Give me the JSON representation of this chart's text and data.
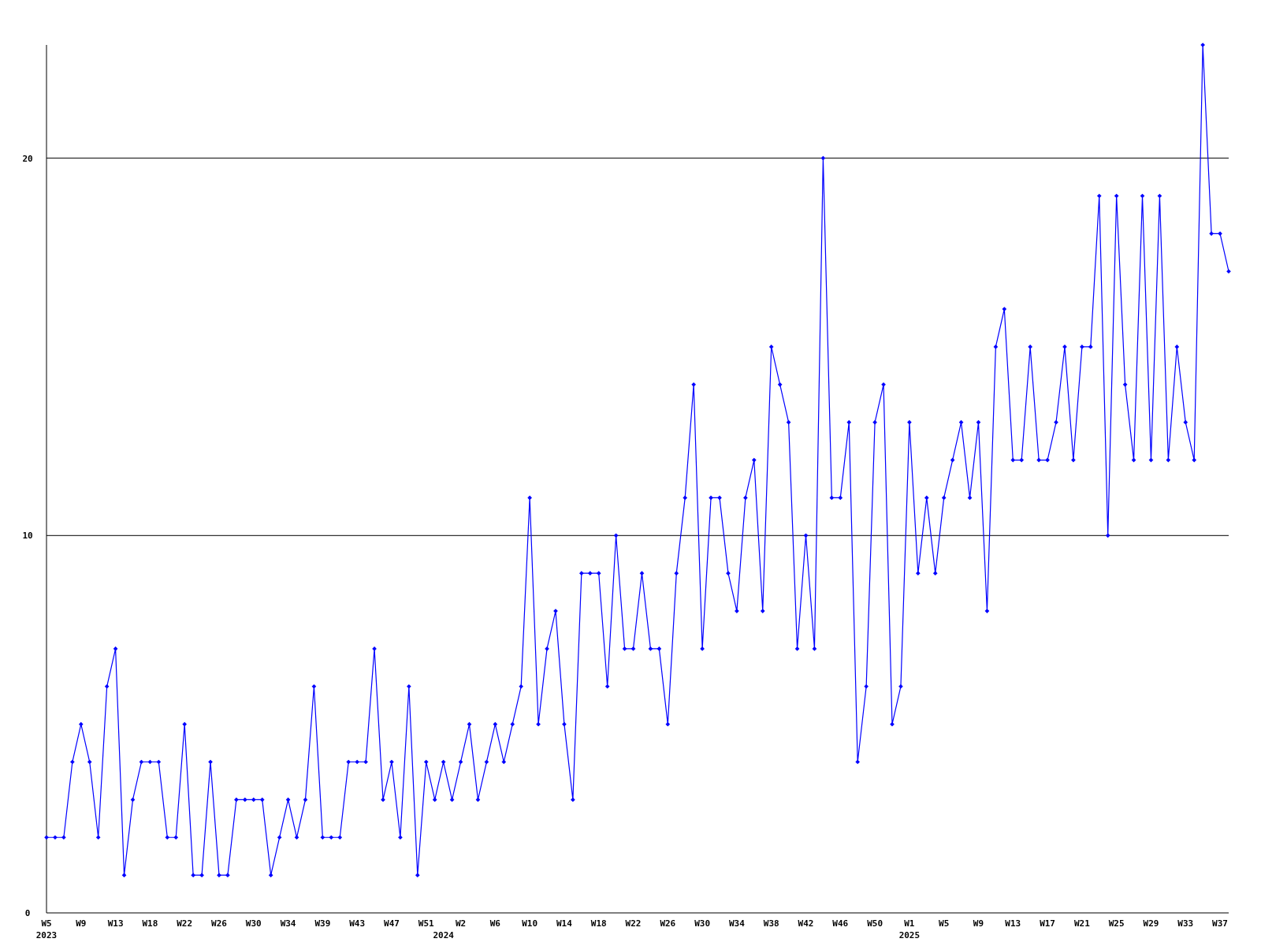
{
  "chart_data": {
    "type": "line",
    "categories": [
      "W5\n2023",
      null,
      null,
      null,
      "W9",
      null,
      null,
      null,
      "W13",
      null,
      null,
      null,
      "W18",
      null,
      null,
      null,
      "W22",
      null,
      null,
      null,
      "W26",
      null,
      null,
      null,
      "W30",
      null,
      null,
      null,
      "W34",
      null,
      null,
      null,
      "W39",
      null,
      null,
      null,
      "W43",
      null,
      null,
      null,
      "W47",
      null,
      null,
      null,
      "W51",
      null,
      "\n2024",
      null,
      "W2",
      null,
      null,
      null,
      "W6",
      null,
      null,
      null,
      "W10",
      null,
      null,
      null,
      "W14",
      null,
      null,
      null,
      "W18",
      null,
      null,
      null,
      "W22",
      null,
      null,
      null,
      "W26",
      null,
      null,
      null,
      "W30",
      null,
      null,
      null,
      "W34",
      null,
      null,
      null,
      "W38",
      null,
      null,
      null,
      "W42",
      null,
      null,
      null,
      "W46",
      null,
      null,
      null,
      "W50",
      null,
      null,
      null,
      "W1\n2025",
      null,
      null,
      null,
      "W5",
      null,
      null,
      null,
      "W9",
      null,
      null,
      null,
      "W13",
      null,
      null,
      null,
      "W17",
      null,
      null,
      null,
      "W21",
      null,
      null,
      null,
      "W25",
      null,
      null,
      null,
      "W29",
      null,
      null,
      null,
      "W33",
      null,
      null,
      null,
      "W37",
      null
    ],
    "series": [
      {
        "color": "#0000ff",
        "values": [
          2,
          2,
          2,
          4,
          5,
          4,
          2,
          6,
          7,
          1,
          3,
          4,
          4,
          4,
          2,
          2,
          5,
          1,
          1,
          4,
          1,
          1,
          3,
          3,
          3,
          3,
          1,
          2,
          3,
          2,
          3,
          6,
          2,
          2,
          2,
          4,
          4,
          4,
          7,
          3,
          4,
          2,
          6,
          1,
          4,
          3,
          4,
          3,
          4,
          5,
          3,
          4,
          5,
          4,
          5,
          6,
          11,
          5,
          7,
          8,
          5,
          3,
          9,
          9,
          9,
          6,
          10,
          7,
          7,
          9,
          7,
          7,
          5,
          9,
          11,
          14,
          7,
          11,
          11,
          9,
          8,
          11,
          12,
          8,
          15,
          14,
          13,
          7,
          10,
          7,
          20,
          11,
          11,
          13,
          4,
          6,
          13,
          14,
          5,
          6,
          13,
          9,
          11,
          9,
          11,
          12,
          13,
          11,
          13,
          8,
          15,
          16,
          12,
          12,
          15,
          12,
          12,
          13,
          15,
          12,
          15,
          15,
          19,
          10,
          19,
          14,
          12,
          19,
          12,
          19,
          12,
          15,
          13,
          12,
          23,
          18,
          18,
          17
        ]
      }
    ],
    "ylim": [
      0,
      23
    ],
    "yticks": [
      0,
      10,
      20
    ],
    "grid": "y",
    "marker": "diamond",
    "line_style": "solid"
  }
}
